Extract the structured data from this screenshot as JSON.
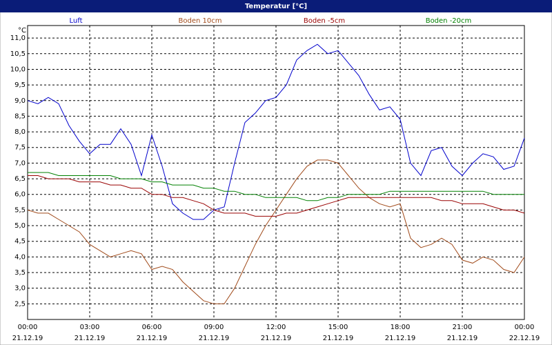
{
  "chart_data": {
    "type": "line",
    "title": "Temperatur [°C]",
    "y_unit": "°C",
    "x": [
      0,
      0.5,
      1,
      1.5,
      2,
      2.5,
      3,
      3.5,
      4,
      4.5,
      5,
      5.5,
      6,
      6.5,
      7,
      7.5,
      8,
      8.5,
      9,
      9.5,
      10,
      10.5,
      11,
      11.5,
      12,
      12.5,
      13,
      13.5,
      14,
      14.5,
      15,
      15.5,
      16,
      16.5,
      17,
      17.5,
      18,
      18.5,
      19,
      19.5,
      20,
      20.5,
      21,
      21.5,
      22,
      22.5,
      23,
      23.5,
      24
    ],
    "xlim": [
      0,
      24
    ],
    "xticks": [
      {
        "value": 0,
        "label": "00:00"
      },
      {
        "value": 3,
        "label": "03:00"
      },
      {
        "value": 6,
        "label": "06:00"
      },
      {
        "value": 9,
        "label": "09:00"
      },
      {
        "value": 12,
        "label": "12:00"
      },
      {
        "value": 15,
        "label": "15:00"
      },
      {
        "value": 18,
        "label": "18:00"
      },
      {
        "value": 21,
        "label": "21:00"
      },
      {
        "value": 24,
        "label": "00:00"
      }
    ],
    "xtick_dates": [
      "21.12.19",
      "21.12.19",
      "21.12.19",
      "21.12.19",
      "21.12.19",
      "21.12.19",
      "21.12.19",
      "21.12.19",
      "22.12.19"
    ],
    "ylim": [
      2.0,
      11.4
    ],
    "yticks": [
      {
        "value": 2.5,
        "label": "2,5"
      },
      {
        "value": 3.0,
        "label": "3,0"
      },
      {
        "value": 3.5,
        "label": "3,5"
      },
      {
        "value": 4.0,
        "label": "4,0"
      },
      {
        "value": 4.5,
        "label": "4,5"
      },
      {
        "value": 5.0,
        "label": "5,0"
      },
      {
        "value": 5.5,
        "label": "5,5"
      },
      {
        "value": 6.0,
        "label": "6,0"
      },
      {
        "value": 6.5,
        "label": "6,5"
      },
      {
        "value": 7.0,
        "label": "7,0"
      },
      {
        "value": 7.5,
        "label": "7,5"
      },
      {
        "value": 8.0,
        "label": "8,0"
      },
      {
        "value": 8.5,
        "label": "8,5"
      },
      {
        "value": 9.0,
        "label": "9,0"
      },
      {
        "value": 9.5,
        "label": "9,5"
      },
      {
        "value": 10.0,
        "label": "10,0"
      },
      {
        "value": 10.5,
        "label": "10,5"
      },
      {
        "value": 11.0,
        "label": "11,0"
      }
    ],
    "grid": true,
    "series": [
      {
        "name": "Luft",
        "color": "#0000cc",
        "values": [
          9.0,
          8.9,
          9.1,
          8.9,
          8.2,
          7.7,
          7.3,
          7.6,
          7.6,
          8.1,
          7.6,
          6.6,
          7.9,
          6.9,
          5.7,
          5.4,
          5.2,
          5.2,
          5.5,
          5.6,
          7.0,
          8.3,
          8.6,
          9.0,
          9.1,
          9.5,
          10.3,
          10.6,
          10.8,
          10.5,
          10.6,
          10.2,
          9.8,
          9.2,
          8.7,
          8.8,
          8.4,
          7.0,
          6.6,
          7.4,
          7.5,
          6.9,
          6.6,
          7.0,
          7.3,
          7.2,
          6.8,
          6.9,
          7.8
        ]
      },
      {
        "name": "Boden 10cm",
        "color": "#a04a1a",
        "values": [
          5.5,
          5.4,
          5.4,
          5.2,
          5.0,
          4.8,
          4.4,
          4.2,
          4.0,
          4.1,
          4.2,
          4.1,
          3.6,
          3.7,
          3.6,
          3.2,
          2.9,
          2.6,
          2.5,
          2.5,
          3.0,
          3.7,
          4.4,
          5.0,
          5.5,
          6.0,
          6.5,
          6.9,
          7.1,
          7.1,
          7.0,
          6.6,
          6.2,
          5.9,
          5.7,
          5.6,
          5.7,
          4.6,
          4.3,
          4.4,
          4.6,
          4.4,
          3.9,
          3.8,
          4.0,
          3.9,
          3.6,
          3.5,
          4.0
        ]
      },
      {
        "name": "Boden -5cm",
        "color": "#990000",
        "values": [
          6.6,
          6.6,
          6.5,
          6.5,
          6.5,
          6.4,
          6.4,
          6.4,
          6.3,
          6.3,
          6.2,
          6.2,
          6.0,
          6.0,
          5.9,
          5.9,
          5.8,
          5.7,
          5.5,
          5.4,
          5.4,
          5.4,
          5.3,
          5.3,
          5.3,
          5.4,
          5.4,
          5.5,
          5.6,
          5.7,
          5.8,
          5.9,
          5.9,
          5.9,
          5.9,
          5.9,
          5.9,
          5.9,
          5.9,
          5.9,
          5.8,
          5.8,
          5.7,
          5.7,
          5.7,
          5.6,
          5.5,
          5.5,
          5.4
        ]
      },
      {
        "name": "Boden -20cm",
        "color": "#008000",
        "values": [
          6.7,
          6.7,
          6.7,
          6.6,
          6.6,
          6.6,
          6.6,
          6.6,
          6.6,
          6.5,
          6.5,
          6.5,
          6.4,
          6.4,
          6.3,
          6.3,
          6.3,
          6.2,
          6.2,
          6.1,
          6.1,
          6.0,
          6.0,
          5.9,
          5.9,
          5.9,
          5.9,
          5.8,
          5.8,
          5.9,
          5.9,
          6.0,
          6.0,
          6.0,
          6.0,
          6.1,
          6.1,
          6.1,
          6.1,
          6.1,
          6.1,
          6.1,
          6.1,
          6.1,
          6.1,
          6.0,
          6.0,
          6.0,
          6.0
        ]
      }
    ]
  }
}
